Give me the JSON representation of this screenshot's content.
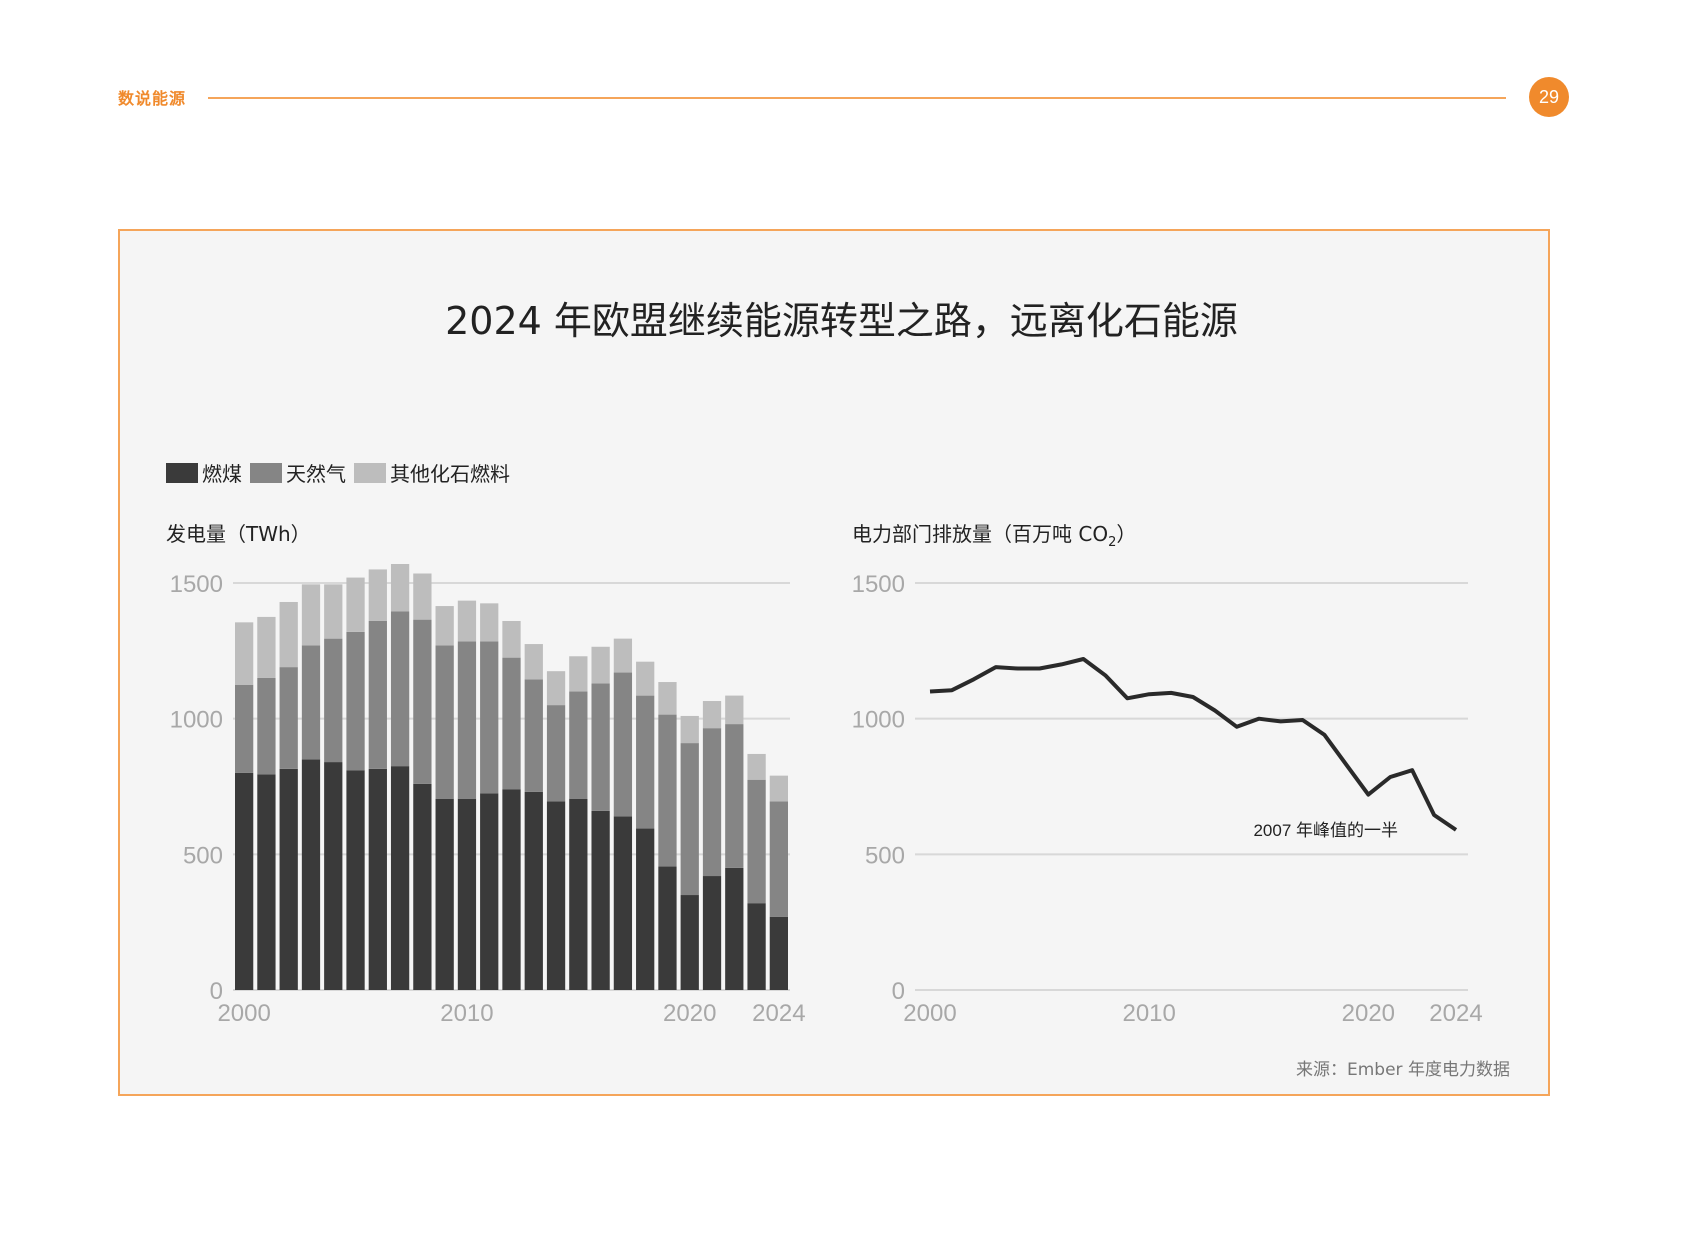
{
  "header": {
    "section_label": "数说能源",
    "page_number": "29"
  },
  "panel": {
    "title": "2024 年欧盟继续能源转型之路，远离化石能源",
    "source": "来源：Ember 年度电力数据"
  },
  "colors": {
    "accent": "#f08a2c",
    "coal": "#3a3a3a",
    "gas": "#858585",
    "other": "#bdbdbd",
    "line": "#2a2a2a",
    "grid": "#d8d8d8",
    "tick": "#a8a8a8"
  },
  "chart_data": [
    {
      "type": "bar",
      "stacked": true,
      "ylabel": "发电量（TWh）",
      "ylim": [
        0,
        1500
      ],
      "yticks": [
        0,
        500,
        1000,
        1500
      ],
      "xtick_labels": [
        "2000",
        "2010",
        "2020",
        "2024"
      ],
      "categories": [
        2000,
        2001,
        2002,
        2003,
        2004,
        2005,
        2006,
        2007,
        2008,
        2009,
        2010,
        2011,
        2012,
        2013,
        2014,
        2015,
        2016,
        2017,
        2018,
        2019,
        2020,
        2021,
        2022,
        2023,
        2024
      ],
      "legend_position": "top-left",
      "series": [
        {
          "name": "燃煤",
          "color_key": "coal",
          "values": [
            800,
            795,
            815,
            850,
            840,
            810,
            815,
            825,
            760,
            705,
            705,
            725,
            740,
            730,
            695,
            705,
            660,
            640,
            595,
            455,
            350,
            420,
            450,
            320,
            270
          ]
        },
        {
          "name": "天然气",
          "color_key": "gas",
          "values": [
            325,
            355,
            375,
            420,
            455,
            510,
            545,
            570,
            605,
            565,
            580,
            560,
            485,
            415,
            355,
            395,
            470,
            530,
            490,
            560,
            560,
            545,
            530,
            455,
            425
          ]
        },
        {
          "name": "其他化石燃料",
          "color_key": "other",
          "values": [
            230,
            225,
            240,
            225,
            200,
            200,
            190,
            175,
            170,
            145,
            150,
            140,
            135,
            130,
            125,
            130,
            135,
            125,
            125,
            120,
            100,
            100,
            105,
            95,
            95
          ]
        }
      ]
    },
    {
      "type": "line",
      "ylabel_main": "电力部门排放量（百万吨 CO",
      "ylabel_sub": "2",
      "ylabel_end": "）",
      "ylim": [
        0,
        1500
      ],
      "yticks": [
        0,
        500,
        1000,
        1500
      ],
      "xtick_labels": [
        "2000",
        "2010",
        "2020",
        "2024"
      ],
      "x": [
        2000,
        2001,
        2002,
        2003,
        2004,
        2005,
        2006,
        2007,
        2008,
        2009,
        2010,
        2011,
        2012,
        2013,
        2014,
        2015,
        2016,
        2017,
        2018,
        2019,
        2020,
        2021,
        2022,
        2023,
        2024
      ],
      "y": [
        1100,
        1105,
        1145,
        1190,
        1185,
        1185,
        1200,
        1220,
        1160,
        1075,
        1090,
        1095,
        1080,
        1030,
        970,
        1000,
        990,
        995,
        940,
        830,
        720,
        785,
        810,
        645,
        590
      ],
      "annotation": "2007 年峰值的一半"
    }
  ]
}
